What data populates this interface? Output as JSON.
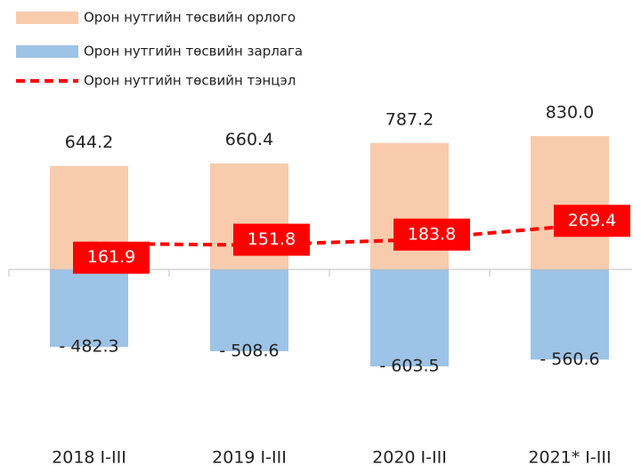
{
  "chart_data": {
    "type": "bar",
    "categories": [
      "2018 I-III",
      "2019 I-III",
      "2020 I-III",
      "2021* I-III"
    ],
    "series": [
      {
        "name": "Орон нутгийн төсвийн орлого",
        "type": "bar",
        "color": "#f8cbad",
        "values": [
          644.2,
          660.4,
          787.2,
          830.0
        ],
        "value_labels": [
          "644.2",
          "660.4",
          "787.2",
          "830.0"
        ]
      },
      {
        "name": "Орон нутгийн төсвийн зарлага",
        "type": "bar",
        "color": "#9dc3e6",
        "values": [
          -482.3,
          -508.6,
          -603.5,
          -560.6
        ],
        "value_labels": [
          "- 482.3",
          "- 508.6",
          "- 603.5",
          "- 560.6"
        ]
      },
      {
        "name": "Орон нутгийн төсвийн тэнцэл",
        "type": "line",
        "color": "#ff0000",
        "values": [
          161.9,
          151.8,
          183.8,
          269.4
        ]
      }
    ],
    "ylim": [
      -1000,
      1000
    ]
  }
}
